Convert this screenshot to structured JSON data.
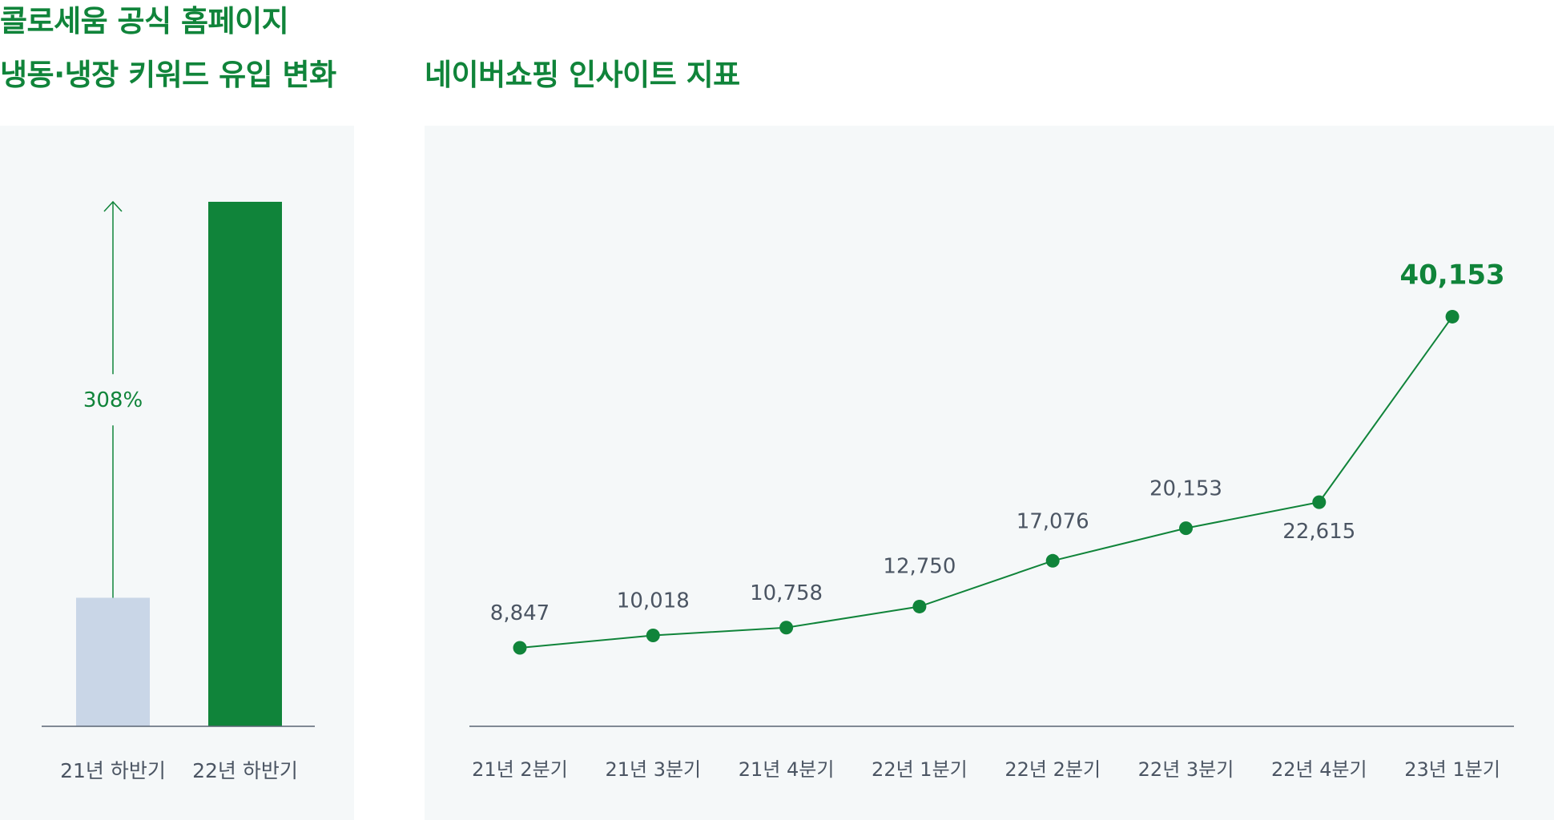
{
  "titles": {
    "left_line1": "콜로세움 공식 홈페이지",
    "left_line2": "냉동·냉장 키워드 유입 변화",
    "right": "네이버쇼핑 인사이트 지표"
  },
  "colors": {
    "accent": "#10843a",
    "bar_muted": "#c9d6e7",
    "axis": "#5a6472",
    "label": "#4b5563",
    "panel_bg": "#f5f8f9"
  },
  "chart_data": [
    {
      "type": "bar",
      "categories": [
        "21년 하반기",
        "22년 하반기"
      ],
      "values": [
        1,
        4.08
      ],
      "annotation": {
        "text": "308%",
        "from": "21년 하반기",
        "to": "22년 하반기"
      },
      "bar_colors": [
        "#c9d6e7",
        "#10843a"
      ],
      "grid": false
    },
    {
      "type": "line",
      "categories": [
        "21년 2분기",
        "21년 3분기",
        "21년 4분기",
        "22년 1분기",
        "22년 2분기",
        "22년 3분기",
        "22년 4분기",
        "23년 1분기"
      ],
      "values": [
        8847,
        10018,
        10758,
        12750,
        17076,
        20153,
        22615,
        40153
      ],
      "value_labels": [
        "8,847",
        "10,018",
        "10,758",
        "12,750",
        "17,076",
        "20,153",
        "22,615",
        "40,153"
      ],
      "highlight_last": true,
      "grid": false
    }
  ]
}
